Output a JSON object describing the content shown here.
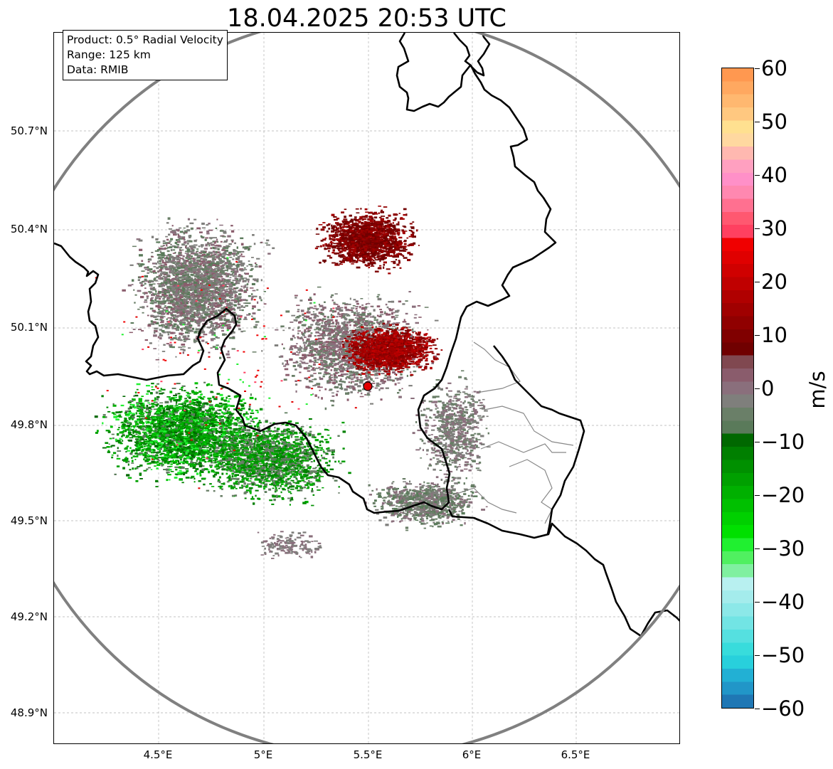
{
  "title": "18.04.2025 20:53 UTC",
  "info": {
    "product": "Product: 0.5° Radial Velocity",
    "range": "Range: 125 km",
    "source": "Data: RMIB"
  },
  "lat_labels": [
    "50.7°N",
    "50.4°N",
    "50.1°N",
    "49.8°N",
    "49.5°N",
    "49.2°N",
    "48.9°N"
  ],
  "lon_labels": [
    "4.5°E",
    "5°E",
    "5.5°E",
    "6°E",
    "6.5°E"
  ],
  "colorbar": {
    "unit": "m/s",
    "ticks": [
      "60",
      "50",
      "40",
      "30",
      "20",
      "10",
      "0",
      "−10",
      "−20",
      "−30",
      "−40",
      "−50",
      "−60"
    ],
    "min": -60,
    "max": 60,
    "colors": [
      "#1f77b4",
      "#2196c8",
      "#22b0d4",
      "#28d0dc",
      "#38dcdc",
      "#55e0e0",
      "#72e4e4",
      "#8ce8e8",
      "#a4ecec",
      "#b8f0f0",
      "#80f0a0",
      "#50f060",
      "#20f030",
      "#00e000",
      "#00d000",
      "#00c000",
      "#00b000",
      "#00a000",
      "#009000",
      "#007f00",
      "#006800",
      "#5a7a5a",
      "#6a7f68",
      "#7f7f7c",
      "#8a6f7c",
      "#8a5c6c",
      "#804850",
      "#700000",
      "#800000",
      "#900000",
      "#a00000",
      "#b00000",
      "#c00000",
      "#d00000",
      "#e00000",
      "#f00000",
      "#ff4060",
      "#ff5870",
      "#ff7090",
      "#ff88b0",
      "#ff90c8",
      "#ffa0c0",
      "#ffb8b0",
      "#ffd8a0",
      "#ffe090",
      "#ffc880",
      "#ffb870",
      "#ffa860",
      "#ff9850"
    ]
  },
  "marker": {
    "color": "#e00000"
  }
}
